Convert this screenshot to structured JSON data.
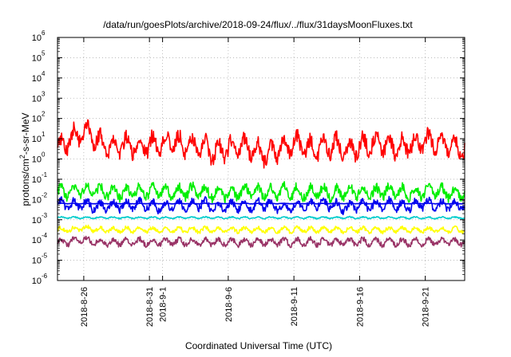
{
  "chart_data": {
    "type": "line",
    "title": "/data/run/goesPlots/archive/2018-09-24/flux/../flux/31daysMoonFluxes.txt",
    "xlabel": "Coordinated Universal Time (UTC)",
    "ylabel": {
      "prefix": "protons/cm",
      "sup": "2",
      "suffix": "-s-sr-MeV"
    },
    "yscale": "log",
    "ylim_exp": [
      -6,
      6
    ],
    "y_ticks": [
      {
        "base": "10",
        "exp": "-6"
      },
      {
        "base": "10",
        "exp": "-5"
      },
      {
        "base": "10",
        "exp": "-4"
      },
      {
        "base": "10",
        "exp": "-3"
      },
      {
        "base": "10",
        "exp": "-2"
      },
      {
        "base": "10",
        "exp": "-1"
      },
      {
        "base": "10",
        "exp": "0"
      },
      {
        "base": "10",
        "exp": "1"
      },
      {
        "base": "10",
        "exp": "2"
      },
      {
        "base": "10",
        "exp": "3"
      },
      {
        "base": "10",
        "exp": "4"
      },
      {
        "base": "10",
        "exp": "5"
      },
      {
        "base": "10",
        "exp": "6"
      }
    ],
    "xlim": [
      "2018-08-24",
      "2018-09-24"
    ],
    "x_ticks": [
      {
        "date": "2018-08-26",
        "label": "2018-8-26"
      },
      {
        "date": "2018-08-31",
        "label": "2018-8-31"
      },
      {
        "date": "2018-09-01",
        "label": "2018-9-1"
      },
      {
        "date": "2018-09-06",
        "label": "2018-9-6"
      },
      {
        "date": "2018-09-11",
        "label": "2018-9-11"
      },
      {
        "date": "2018-09-16",
        "label": "2018-9-16"
      },
      {
        "date": "2018-09-21",
        "label": "2018-9-21"
      }
    ],
    "grid": true,
    "series": [
      {
        "color": "#ff0000",
        "daily_log10": [
          0.4,
          1.0,
          1.4,
          0.9,
          0.6,
          0.7,
          0.6,
          0.7,
          0.8,
          0.8,
          0.6,
          0.6,
          0.3,
          0.5,
          0.7,
          0.4,
          0.2,
          0.5,
          0.8,
          0.5,
          0.6,
          0.7,
          0.4,
          0.6,
          0.8,
          0.7,
          0.6,
          0.7,
          0.9,
          0.8,
          0.6,
          0.5
        ],
        "amplitude": 0.7
      },
      {
        "color": "#00ee00",
        "daily_log10": [
          -1.7,
          -1.6,
          -1.5,
          -1.6,
          -1.6,
          -1.7,
          -1.6,
          -1.6,
          -1.6,
          -1.7,
          -1.6,
          -1.6,
          -1.7,
          -1.7,
          -1.6,
          -1.6,
          -1.7,
          -1.6,
          -1.6,
          -1.7,
          -1.6,
          -1.7,
          -1.6,
          -1.6,
          -1.7,
          -1.6,
          -1.6,
          -1.7,
          -1.6,
          -1.6,
          -1.7,
          -1.6
        ],
        "amplitude": 0.45
      },
      {
        "color": "#0000ee",
        "daily_log10": [
          -2.2,
          -2.3,
          -2.2,
          -2.4,
          -2.3,
          -2.3,
          -2.2,
          -2.3,
          -2.4,
          -2.3,
          -2.3,
          -2.2,
          -2.4,
          -2.3,
          -2.3,
          -2.3,
          -2.2,
          -2.4,
          -2.3,
          -2.3,
          -2.2,
          -2.3,
          -2.4,
          -2.3,
          -2.3,
          -2.2,
          -2.3,
          -2.3,
          -2.2,
          -2.3,
          -2.3,
          -2.3
        ],
        "amplitude": 0.35
      },
      {
        "color": "#0000ee",
        "daily_log10": [
          -2.2,
          -2.2,
          -2.2,
          -2.2,
          -2.2,
          -2.2,
          -2.2,
          -2.2,
          -2.2,
          -2.2,
          -2.2,
          -2.2,
          -2.2,
          -2.2,
          -2.2,
          -2.2,
          -2.2,
          -2.2,
          -2.2,
          -2.2,
          -2.2,
          -2.2,
          -2.2,
          -2.2,
          -2.2,
          -2.2,
          -2.2,
          -2.2,
          -2.2,
          -2.2,
          -2.2,
          -2.2
        ],
        "amplitude": 0.02
      },
      {
        "color": "#00cccc",
        "daily_log10": [
          -2.9,
          -2.9,
          -2.9,
          -2.9,
          -2.9,
          -2.9,
          -2.9,
          -2.9,
          -2.9,
          -2.9,
          -2.9,
          -2.9,
          -2.9,
          -2.9,
          -2.9,
          -2.9,
          -2.9,
          -2.9,
          -2.9,
          -2.9,
          -2.9,
          -2.9,
          -2.9,
          -2.9,
          -2.9,
          -2.9,
          -2.9,
          -2.9,
          -2.9,
          -2.9,
          -2.9,
          -2.9
        ],
        "amplitude": 0.06
      },
      {
        "color": "#ffff00",
        "daily_log10": [
          -3.5,
          -3.5,
          -3.4,
          -3.5,
          -3.5,
          -3.5,
          -3.5,
          -3.5,
          -3.5,
          -3.5,
          -3.5,
          -3.5,
          -3.5,
          -3.5,
          -3.5,
          -3.5,
          -3.5,
          -3.5,
          -3.5,
          -3.5,
          -3.5,
          -3.5,
          -3.5,
          -3.5,
          -3.5,
          -3.5,
          -3.5,
          -3.5,
          -3.5,
          -3.5,
          -3.5,
          -3.5
        ],
        "amplitude": 0.18
      },
      {
        "color": "#993366",
        "daily_log10": [
          -4.1,
          -4.1,
          -4.0,
          -4.1,
          -4.1,
          -4.1,
          -4.1,
          -4.1,
          -4.1,
          -4.1,
          -4.1,
          -4.1,
          -4.1,
          -4.1,
          -4.1,
          -4.1,
          -4.1,
          -4.1,
          -4.1,
          -4.1,
          -4.1,
          -4.1,
          -4.1,
          -4.1,
          -4.1,
          -4.1,
          -4.1,
          -4.1,
          -4.1,
          -4.1,
          -4.1,
          -4.1
        ],
        "amplitude": 0.25
      }
    ]
  }
}
